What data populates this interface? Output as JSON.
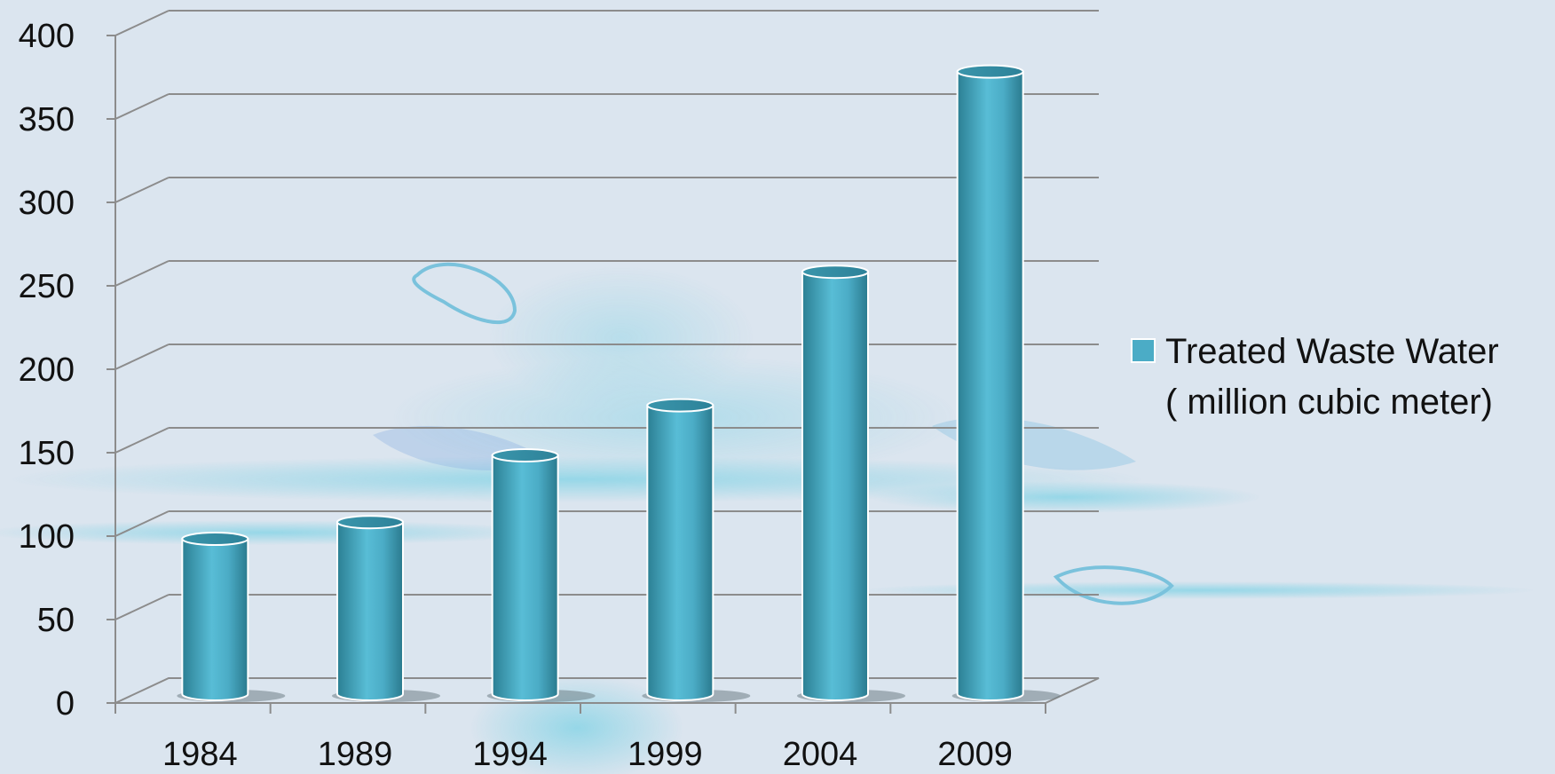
{
  "chart_data": {
    "type": "bar",
    "categories": [
      "1984",
      "1989",
      "1994",
      "1999",
      "2004",
      "2009"
    ],
    "series": [
      {
        "name": "Treated Waste Water ( million cubic meter)",
        "values": [
          92,
          102,
          142,
          172,
          252,
          372
        ]
      }
    ],
    "ylim": [
      0,
      400
    ],
    "yticks": [
      0,
      50,
      100,
      150,
      200,
      250,
      300,
      350,
      400
    ],
    "grid": true,
    "legend_position": "right",
    "legend_lines": [
      "Treated Waste Water",
      "( million cubic meter)"
    ],
    "style": "3d-cylinder",
    "bar_color": "#4bacc6",
    "background_color": "#dbe5ef",
    "water_splash_color": "#7fd3e6"
  }
}
